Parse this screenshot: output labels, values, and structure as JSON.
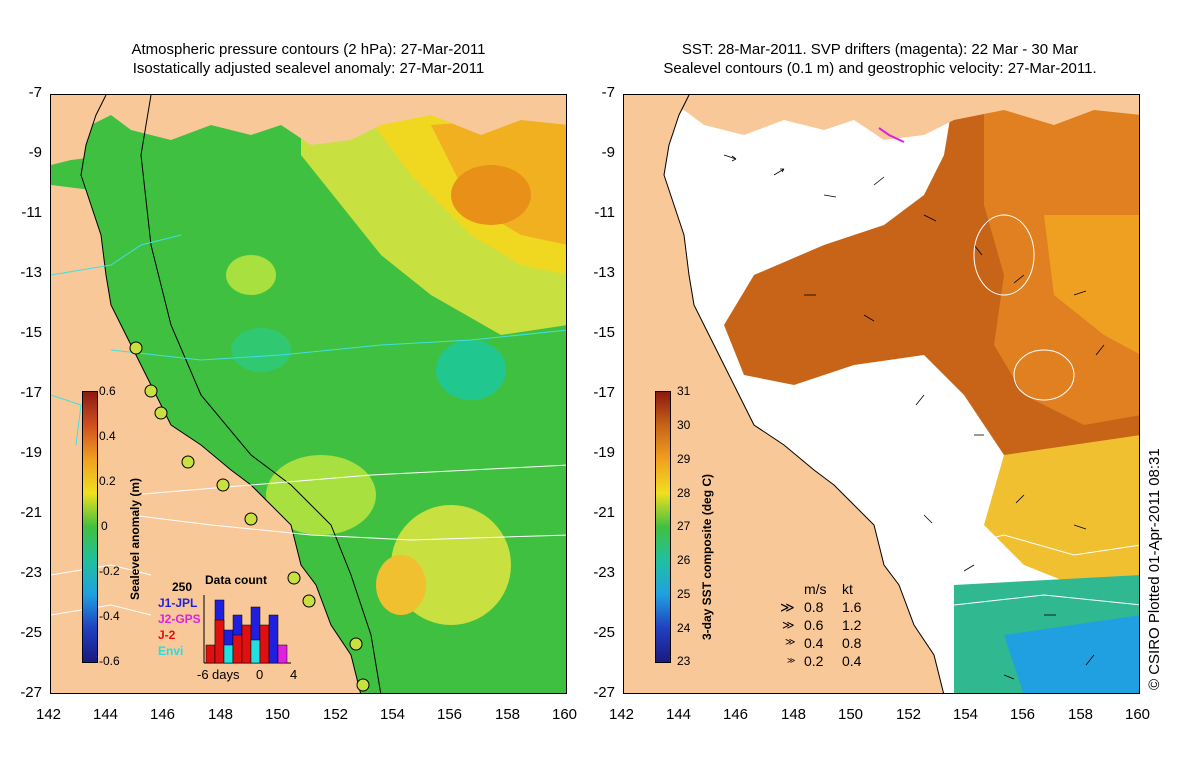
{
  "left_panel": {
    "title_line1": "Atmospheric pressure contours (2 hPa): 27-Mar-2011",
    "title_line2": "Isostatically adjusted sealevel anomaly: 27-Mar-2011",
    "colorbar": {
      "title": "Sealevel anomaly (m)",
      "ticks": [
        "0.6",
        "0.4",
        "0.2",
        "0",
        "-0.2",
        "-0.4",
        "-0.6"
      ]
    },
    "data_count": {
      "title": "Data count",
      "max_label": "250",
      "series": [
        {
          "name": "J1-JPL",
          "color": "#1f1fe0"
        },
        {
          "name": "J2-GPS",
          "color": "#e020e0"
        },
        {
          "name": "J-2",
          "color": "#e01010"
        },
        {
          "name": "Envi",
          "color": "#20e0e0"
        }
      ],
      "x_labels": [
        "-6",
        "days",
        "0",
        "4"
      ]
    }
  },
  "right_panel": {
    "title_line1": "SST: 28-Mar-2011. SVP drifters (magenta): 22 Mar - 30 Mar",
    "title_line2": "Sealevel contours (0.1 m) and geostrophic velocity: 27-Mar-2011.",
    "colorbar": {
      "title": "3-day SST composite (deg C)",
      "ticks": [
        "31",
        "30",
        "29",
        "28",
        "27",
        "26",
        "25",
        "24",
        "23"
      ]
    },
    "velocity_legend": {
      "header_ms": "m/s",
      "header_kt": "kt",
      "rows": [
        {
          "ms": "0.8",
          "kt": "1.6"
        },
        {
          "ms": "0.6",
          "kt": "1.2"
        },
        {
          "ms": "0.4",
          "kt": "0.8"
        },
        {
          "ms": "0.2",
          "kt": "0.4"
        }
      ]
    }
  },
  "axes": {
    "y_ticks": [
      "-7",
      "-9",
      "-11",
      "-13",
      "-15",
      "-17",
      "-19",
      "-21",
      "-23",
      "-25",
      "-27"
    ],
    "x_ticks": [
      "142",
      "144",
      "146",
      "148",
      "150",
      "152",
      "154",
      "156",
      "158",
      "160"
    ]
  },
  "credit": "© CSIRO Plotted 01-Apr-2011 08:31",
  "colors": {
    "land": "#f8c898",
    "sst_warm": "#c86418",
    "sla_green": "#40c040",
    "contour_cyan": "#40e0e0"
  }
}
